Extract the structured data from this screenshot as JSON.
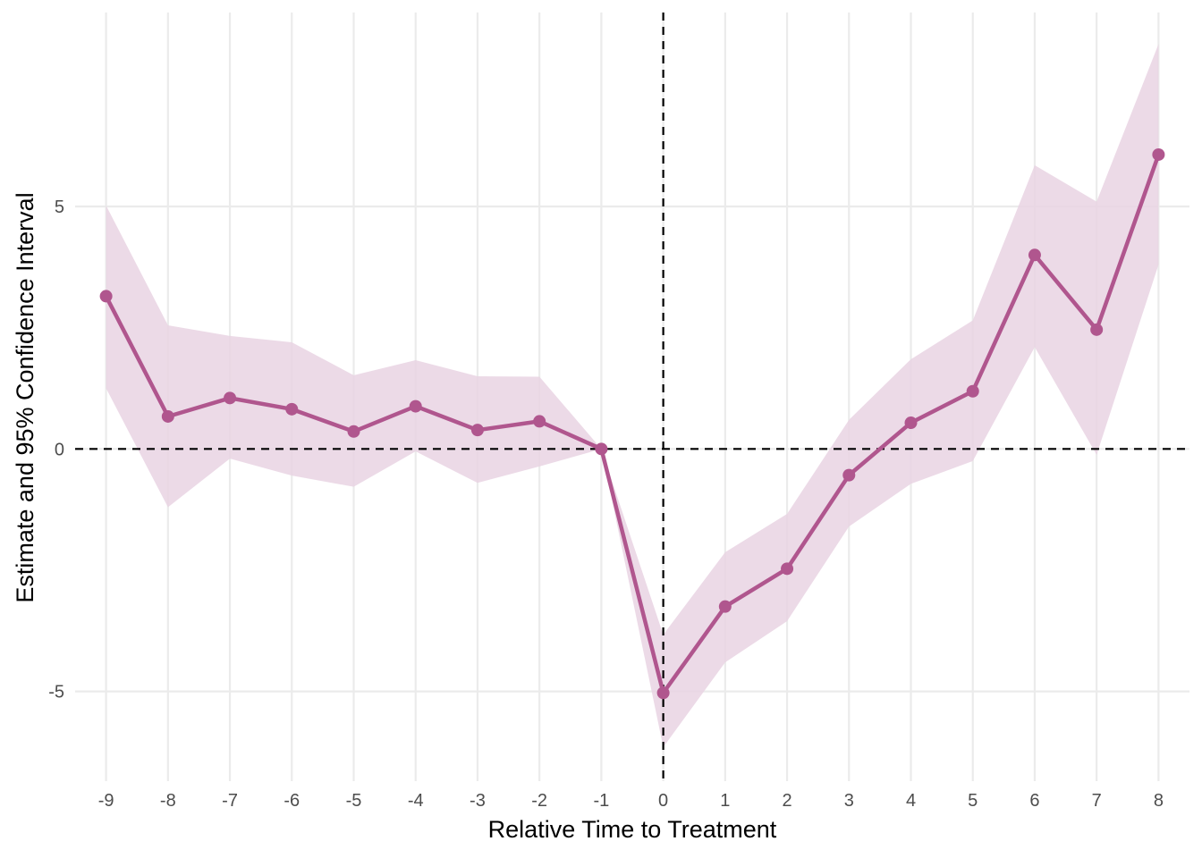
{
  "chart_data": {
    "type": "line",
    "title": "",
    "xlabel": "Relative Time to Treatment",
    "ylabel": "Estimate and 95% Confidence Interval",
    "x": [
      -9,
      -8,
      -7,
      -6,
      -5,
      -4,
      -3,
      -2,
      -1,
      0,
      1,
      2,
      3,
      4,
      5,
      6,
      7,
      8
    ],
    "series": [
      {
        "values": [
          3.15,
          0.67,
          1.05,
          0.82,
          0.36,
          0.88,
          0.39,
          0.57,
          0.0,
          -5.03,
          -3.25,
          -2.47,
          -0.54,
          0.54,
          1.19,
          4.0,
          2.46,
          6.07
        ],
        "ci_low": [
          1.25,
          -1.2,
          -0.2,
          -0.55,
          -0.78,
          -0.05,
          -0.7,
          -0.36,
          0.0,
          -6.15,
          -4.4,
          -3.55,
          -1.6,
          -0.72,
          -0.25,
          2.1,
          -0.12,
          3.8
        ],
        "ci_high": [
          5.02,
          2.55,
          2.33,
          2.2,
          1.52,
          1.83,
          1.5,
          1.49,
          0.0,
          -3.83,
          -2.13,
          -1.34,
          0.6,
          1.85,
          2.65,
          5.85,
          5.1,
          8.35
        ]
      }
    ],
    "xlim": [
      -9.5,
      8.5
    ],
    "ylim": [
      -6.85,
      9.0
    ],
    "xticks": [
      "-9",
      "-8",
      "-7",
      "-6",
      "-5",
      "-4",
      "-3",
      "-2",
      "-1",
      "0",
      "1",
      "2",
      "3",
      "4",
      "5",
      "6",
      "7",
      "8"
    ],
    "yticks": [
      "5",
      "0",
      "-5"
    ],
    "ytick_values": [
      5,
      0,
      -5
    ],
    "reference_lines": {
      "x": 0,
      "y": 0,
      "style": "dashed"
    },
    "grid": true,
    "legend": "none",
    "colors": {
      "line": "#b0568e",
      "ribbon": "#e9d3e3",
      "grid": "#ebebeb",
      "reference": "#000000"
    }
  }
}
